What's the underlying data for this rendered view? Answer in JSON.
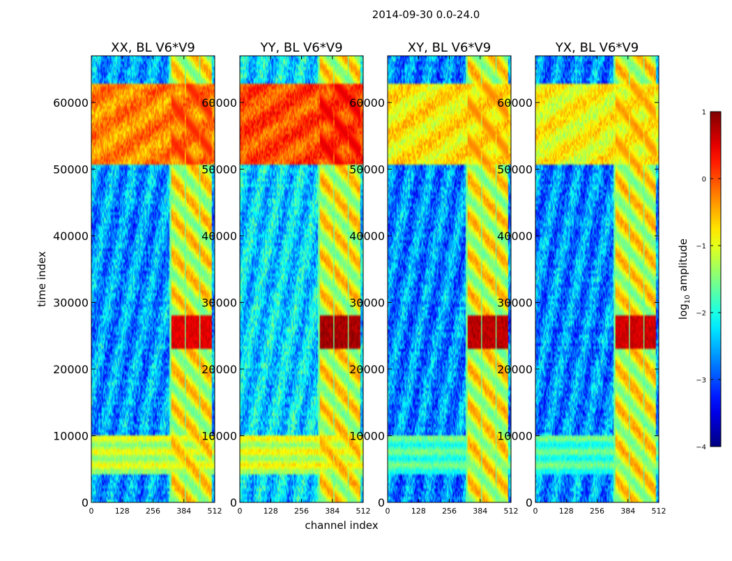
{
  "figure": {
    "suptitle": "2014-09-30 0.0-24.0",
    "xlabel": "channel index",
    "ylabel": "time index"
  },
  "chart_data": {
    "type": "heatmap",
    "x": {
      "label": "channel index",
      "range": [
        0,
        512
      ],
      "ticks": [
        0,
        128,
        256,
        384,
        512
      ]
    },
    "y": {
      "label": "time index",
      "range": [
        0,
        67000
      ],
      "ticks": [
        0,
        10000,
        20000,
        30000,
        40000,
        50000,
        60000
      ]
    },
    "colorbar": {
      "label_base": "log",
      "label_sub": "10",
      "label_tail": " amplitude",
      "range": [
        -4,
        1
      ],
      "ticks": [
        1,
        0,
        -1,
        -2,
        -3,
        -4
      ],
      "tick_labels": [
        "1",
        "0",
        "−1",
        "−2",
        "−3",
        "−4"
      ],
      "colormap": "jet"
    },
    "panels": [
      {
        "title": "XX, BL V6*V9",
        "baseline": -2.6,
        "high_band": -0.3,
        "low_band": -1.2,
        "rfi_peak": 0.5
      },
      {
        "title": "YY, BL V6*V9",
        "baseline": -2.3,
        "high_band": 0.0,
        "low_band": -1.1,
        "rfi_peak": 0.8
      },
      {
        "title": "XY, BL V6*V9",
        "baseline": -2.7,
        "high_band": -0.8,
        "low_band": -1.8,
        "rfi_peak": 0.7
      },
      {
        "title": "YX, BL V6*V9",
        "baseline": -2.7,
        "high_band": -0.9,
        "low_band": -1.8,
        "rfi_peak": 0.6
      }
    ],
    "features": {
      "high_amplitude_rows": [
        50800,
        63000
      ],
      "low_band_rows": [
        4200,
        10000
      ],
      "rfi_channels": [
        [
          332,
          358
        ],
        [
          362,
          388
        ],
        [
          392,
          418
        ],
        [
          422,
          448
        ],
        [
          452,
          478
        ],
        [
          482,
          500
        ]
      ],
      "rfi_peak_rows": [
        23000,
        28000
      ]
    }
  }
}
